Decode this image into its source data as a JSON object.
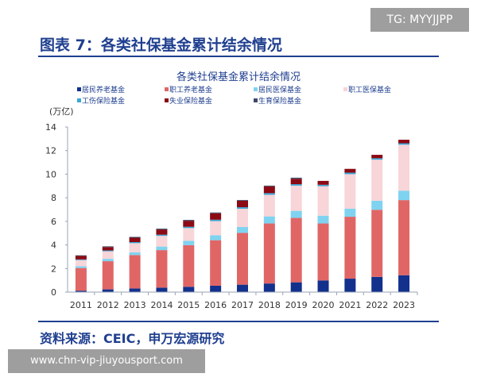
{
  "header": {
    "title": "图表 7：各类社保基金累计结余情况"
  },
  "watermark_top": "TG: MYYJJPP",
  "watermark_bottom": "www.chn-vip-jiuyousport.com",
  "source": "资料来源：CEIC，申万宏源研究",
  "chart_data": {
    "type": "bar",
    "stacked": true,
    "title": "各类社保基金累计结余情况",
    "ylabel": "(万亿)",
    "xlabel": "",
    "ylim": [
      0,
      14
    ],
    "yticks": [
      0,
      2,
      4,
      6,
      8,
      10,
      12,
      14
    ],
    "legend": "top",
    "grid": false,
    "categories": [
      "2011",
      "2012",
      "2013",
      "2014",
      "2015",
      "2016",
      "2017",
      "2018",
      "2019",
      "2020",
      "2021",
      "2022",
      "2023"
    ],
    "series": [
      {
        "name": "居民养老基金",
        "color": "#12308c",
        "values": [
          0.12,
          0.23,
          0.31,
          0.38,
          0.45,
          0.54,
          0.63,
          0.73,
          0.83,
          0.99,
          1.14,
          1.29,
          1.43
        ]
      },
      {
        "name": "职工养老基金",
        "color": "#e06666",
        "values": [
          1.92,
          2.39,
          2.83,
          3.18,
          3.53,
          3.86,
          4.39,
          5.09,
          5.46,
          4.83,
          5.25,
          5.69,
          6.37
        ]
      },
      {
        "name": "居民医保基金",
        "color": "#7fd3f0",
        "values": [
          0.15,
          0.2,
          0.24,
          0.3,
          0.37,
          0.42,
          0.5,
          0.6,
          0.6,
          0.66,
          0.68,
          0.77,
          0.8
        ]
      },
      {
        "name": "职工医保基金",
        "color": "#f7d5d8",
        "values": [
          0.52,
          0.64,
          0.77,
          0.91,
          1.08,
          1.2,
          1.55,
          1.83,
          2.14,
          2.5,
          2.93,
          3.48,
          3.9
        ]
      },
      {
        "name": "工伤保险基金",
        "color": "#3aa6d6",
        "values": [
          0.06,
          0.07,
          0.09,
          0.1,
          0.11,
          0.12,
          0.13,
          0.14,
          0.12,
          0.12,
          0.13,
          0.12,
          0.12
        ]
      },
      {
        "name": "失业保险基金",
        "color": "#8b0a14",
        "values": [
          0.3,
          0.29,
          0.37,
          0.44,
          0.51,
          0.54,
          0.55,
          0.58,
          0.46,
          0.33,
          0.32,
          0.29,
          0.3
        ]
      },
      {
        "name": "生育保险基金",
        "color": "#3c4a66",
        "values": [
          0.05,
          0.06,
          0.07,
          0.07,
          0.07,
          0.07,
          0.06,
          0.06,
          0.09,
          0.0,
          0.0,
          0.0,
          0.0
        ]
      }
    ]
  }
}
